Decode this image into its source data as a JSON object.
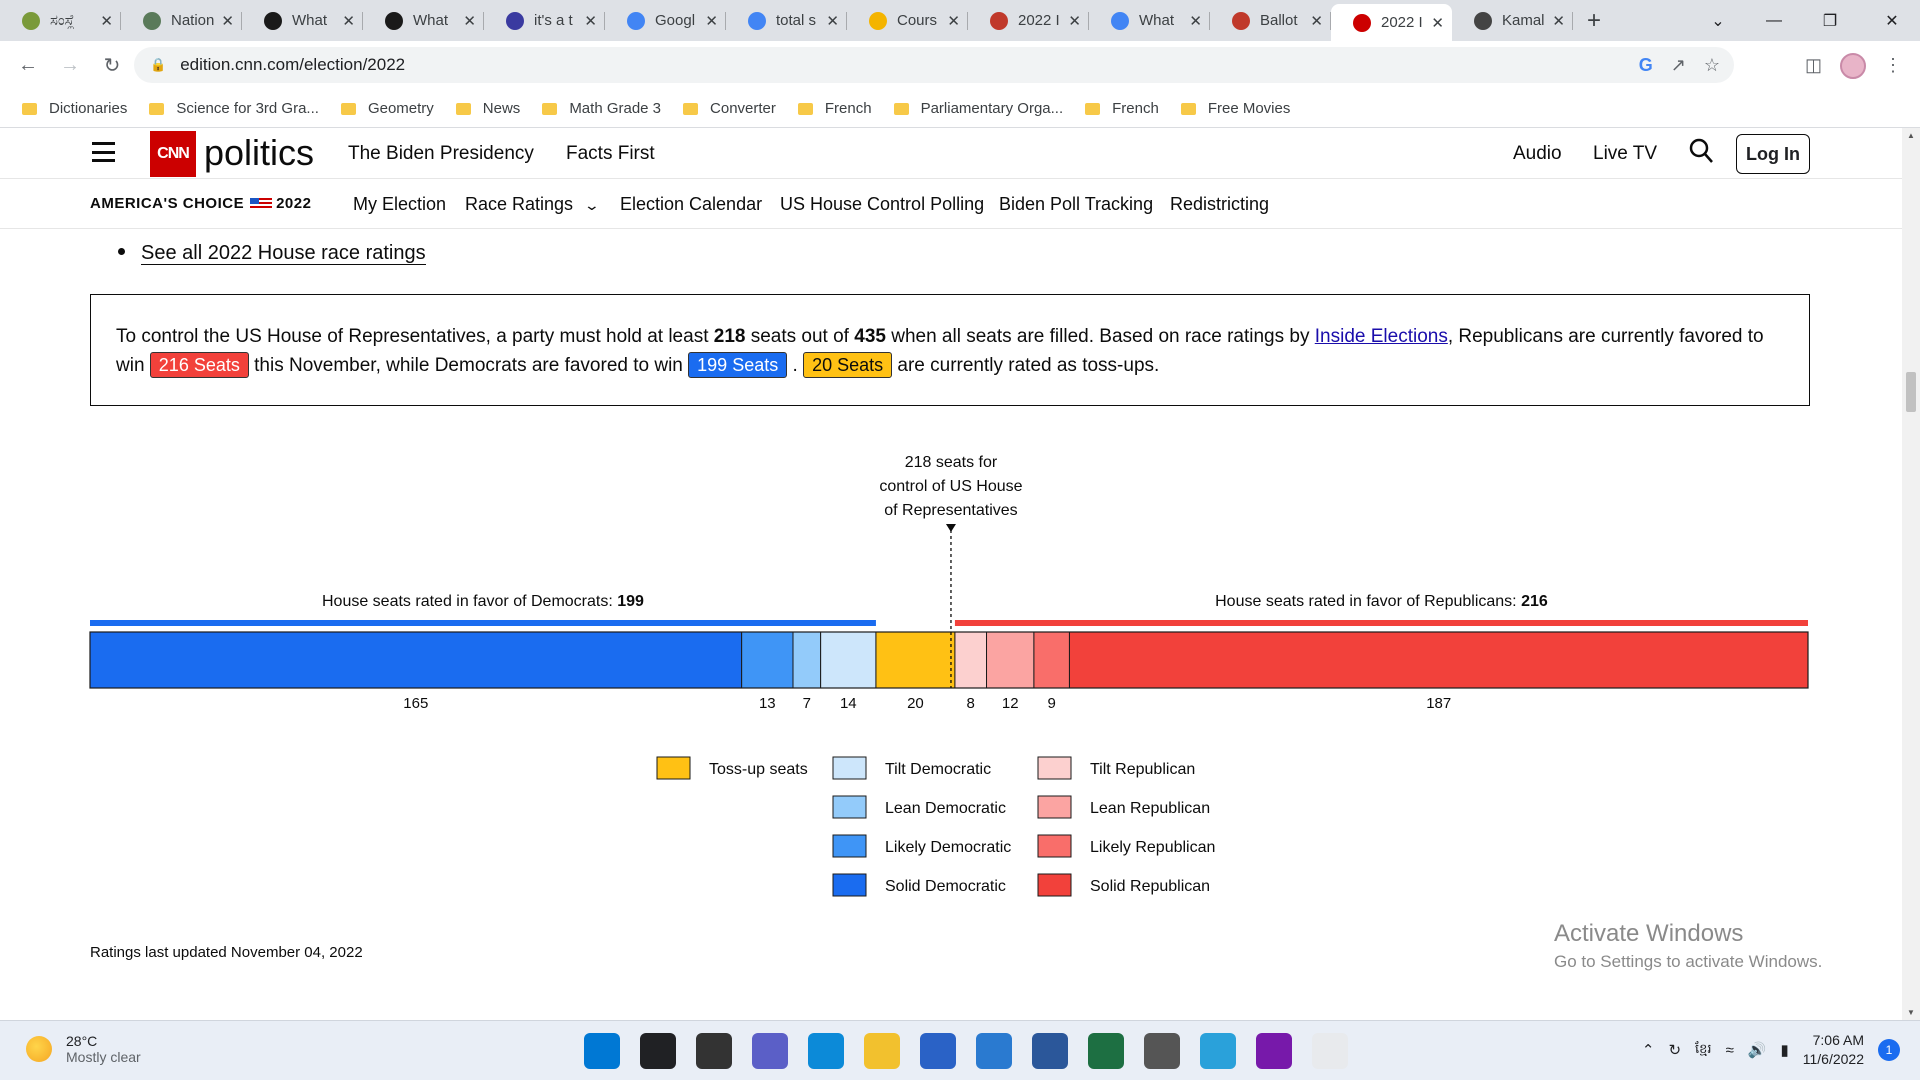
{
  "browser": {
    "tabs": [
      {
        "label": "ಸಂಸ್ಥೆ",
        "favicon": "cannabis-icon",
        "color": "#7a9a3a"
      },
      {
        "label": "Nation",
        "favicon": "globe-icon",
        "color": "#5a7a5a"
      },
      {
        "label": "What",
        "favicon": "power-icon",
        "color": "#1a1a1a"
      },
      {
        "label": "What",
        "favicon": "power-icon",
        "color": "#1a1a1a"
      },
      {
        "label": "it's a t",
        "favicon": "robot-icon",
        "color": "#3a3aa0"
      },
      {
        "label": "Googl",
        "favicon": "google-icon",
        "color": "#4285f4"
      },
      {
        "label": "total s",
        "favicon": "google-icon",
        "color": "#4285f4"
      },
      {
        "label": "Cours",
        "favicon": "classroom-icon",
        "color": "#f4b400"
      },
      {
        "label": "2022 I",
        "favicon": "ballotpedia-icon",
        "color": "#c0392b"
      },
      {
        "label": "What",
        "favicon": "google-icon",
        "color": "#4285f4"
      },
      {
        "label": "Ballot",
        "favicon": "ballotpedia-icon",
        "color": "#c0392b"
      },
      {
        "label": "2022 I",
        "favicon": "cnn-icon",
        "color": "#cc0000",
        "active": true
      },
      {
        "label": "Kamal",
        "favicon": "wikipedia-icon",
        "color": "#444444"
      }
    ],
    "url": "edition.cnn.com/election/2022",
    "bookmarks": [
      "Dictionaries",
      "Science for 3rd Gra...",
      "Geometry",
      "News",
      "Math Grade 3",
      "Converter",
      "French",
      "Parliamentary Orga...",
      "French",
      "Free Movies"
    ]
  },
  "header": {
    "logo": "CNN",
    "section": "politics",
    "nav": [
      "The Biden Presidency",
      "Facts First"
    ],
    "right": [
      "Audio",
      "Live TV"
    ],
    "login": "Log In"
  },
  "subnav": {
    "brand_left": "AMERICA'S CHOICE",
    "brand_year": "2022",
    "items": [
      "My Election",
      "Race Ratings",
      "Election Calendar",
      "US House Control Polling",
      "Biden Poll Tracking",
      "Redistricting"
    ]
  },
  "content": {
    "bullet_link": "See all 2022 House race ratings",
    "info": {
      "p1": "To control the US House of Representatives, a party must hold at least ",
      "n218": "218",
      "p2": " seats out of ",
      "n435": "435",
      "p3": " when all seats are filled. Based on race ratings by ",
      "link": "Inside Elections",
      "p4": ", Republicans are currently favored to win ",
      "rep_pill": "216 Seats",
      "p5": " this November, while Democrats are favored to win ",
      "dem_pill": "199 Seats",
      "p6": " . ",
      "toss_pill": "20 Seats",
      "p7": " are currently rated as toss-ups."
    },
    "updated": "Ratings last updated November 04, 2022"
  },
  "chart_data": {
    "type": "bar",
    "stacked": true,
    "total": 435,
    "threshold": 218,
    "threshold_label": [
      "218 seats for",
      "control of US House",
      "of Representatives"
    ],
    "dem_label": "House seats rated in favor of Democrats: ",
    "dem_total": 199,
    "rep_label": "House seats rated in favor of Republicans: ",
    "rep_total": 216,
    "segments": [
      {
        "name": "Solid Democratic",
        "value": 165,
        "color": "#1a6cf0"
      },
      {
        "name": "Likely Democratic",
        "value": 13,
        "color": "#3f95f6"
      },
      {
        "name": "Lean Democratic",
        "value": 7,
        "color": "#93cbfa"
      },
      {
        "name": "Tilt Democratic",
        "value": 14,
        "color": "#cde6fb"
      },
      {
        "name": "Toss-up seats",
        "value": 20,
        "color": "#ffc114"
      },
      {
        "name": "Tilt Republican",
        "value": 8,
        "color": "#fcd0cf"
      },
      {
        "name": "Lean Republican",
        "value": 12,
        "color": "#fba4a2"
      },
      {
        "name": "Likely Republican",
        "value": 9,
        "color": "#f96e6a"
      },
      {
        "name": "Solid Republican",
        "value": 187,
        "color": "#f2413b"
      }
    ],
    "legend": [
      [
        "Toss-up seats"
      ],
      [
        "Tilt Democratic",
        "Lean Democratic",
        "Likely Democratic",
        "Solid Democratic"
      ],
      [
        "Tilt Republican",
        "Lean Republican",
        "Likely Republican",
        "Solid Republican"
      ]
    ],
    "dem_color": "#1a6cf0",
    "rep_color": "#f2413b"
  },
  "overlay": {
    "activate_title": "Activate Windows",
    "activate_sub": "Go to Settings to activate Windows."
  },
  "taskbar": {
    "temp": "28°C",
    "weather": "Mostly clear",
    "time": "7:06 AM",
    "date": "11/6/2022",
    "notifications": "1",
    "apps": [
      "windows-icon",
      "search-icon",
      "task-view-icon",
      "teams-icon",
      "edge-icon",
      "file-explorer-icon",
      "store-icon",
      "mail-icon",
      "word-icon",
      "excel-icon",
      "clock-icon",
      "telegram-icon",
      "onenote-icon",
      "chrome-icon"
    ]
  }
}
